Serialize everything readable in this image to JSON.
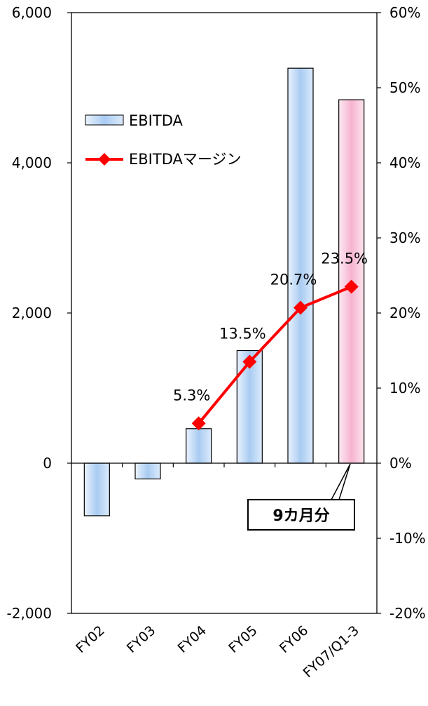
{
  "chart_data": {
    "type": "bar",
    "categories": [
      "FY02",
      "FY03",
      "FY04",
      "FY05",
      "FY06",
      "FY07/Q1-3"
    ],
    "series": [
      {
        "name": "EBITDA",
        "type": "bar",
        "axis": "left",
        "values": [
          -700,
          -210,
          460,
          1500,
          5260,
          4840
        ],
        "colors": [
          "#b8d4f4",
          "#b8d4f4",
          "#b8d4f4",
          "#b8d4f4",
          "#b8d4f4",
          "#f9c6dc"
        ]
      },
      {
        "name": "EBITDAマージン",
        "type": "line",
        "axis": "right",
        "color": "#ff0000",
        "values": [
          null,
          null,
          5.3,
          13.5,
          20.7,
          23.5
        ],
        "labels": [
          "",
          "",
          "5.3%",
          "13.5%",
          "20.7%",
          "23.5%"
        ]
      }
    ],
    "ylim": [
      -2000,
      6000
    ],
    "yticks": [
      "6,000",
      "4,000",
      "2,000",
      "0",
      "-2,000"
    ],
    "ytick_values": [
      6000,
      4000,
      2000,
      0,
      -2000
    ],
    "y2lim": [
      -20,
      60
    ],
    "y2ticks": [
      "60%",
      "50%",
      "40%",
      "30%",
      "20%",
      "10%",
      "0%",
      "-10%",
      "-20%"
    ],
    "y2tick_values": [
      60,
      50,
      40,
      30,
      20,
      10,
      0,
      -10,
      -20
    ],
    "legend": {
      "placement": "upper-left",
      "items": [
        "EBITDA",
        "EBITDAマージン"
      ]
    },
    "annotation": {
      "text": "9カ月分",
      "target": "FY07/Q1-3"
    },
    "grid": false
  }
}
